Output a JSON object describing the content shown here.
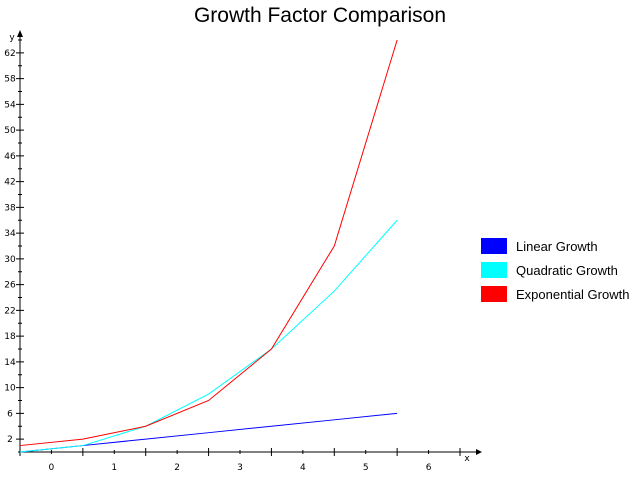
{
  "chart_data": {
    "type": "line",
    "title": "Growth Factor Comparison",
    "xlabel": "x",
    "ylabel": "y",
    "xlim": [
      -0.5,
      6.5
    ],
    "ylim": [
      0,
      64
    ],
    "x_ticks": [
      0,
      1,
      2,
      3,
      4,
      5,
      6
    ],
    "y_ticks": [
      2,
      6,
      10,
      14,
      18,
      22,
      26,
      30,
      34,
      38,
      42,
      46,
      50,
      54,
      58,
      62
    ],
    "x": [
      0,
      1,
      2,
      3,
      4,
      5,
      6
    ],
    "series": [
      {
        "name": "Linear Growth",
        "color": "#0000ff",
        "values": [
          0,
          1,
          2,
          3,
          4,
          5,
          6
        ]
      },
      {
        "name": "Quadratic Growth",
        "color": "#00ffff",
        "values": [
          0,
          1,
          4,
          9,
          16,
          25,
          36
        ]
      },
      {
        "name": "Exponential Growth",
        "color": "#ff0000",
        "values": [
          1,
          2,
          4,
          8,
          16,
          32,
          64
        ]
      }
    ],
    "grid": false,
    "legend": "right"
  }
}
